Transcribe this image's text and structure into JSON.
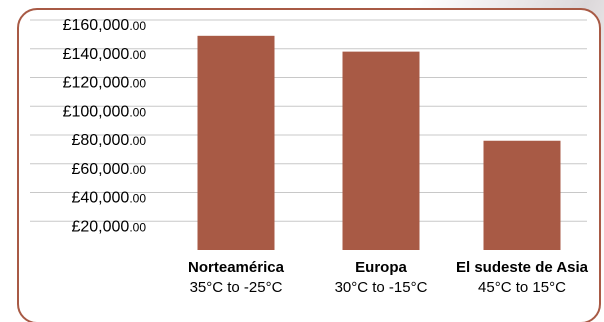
{
  "chart_data": {
    "type": "bar",
    "title": "",
    "xlabel": "",
    "ylabel": "",
    "ylim": [
      0,
      160000
    ],
    "grid": true,
    "bar_color": "#a85a45",
    "grid_color": "#c8c8c8",
    "frame_color": "#a85a45",
    "y_ticks": [
      {
        "value": 160000,
        "main": "£160,000",
        "decimals": ".00"
      },
      {
        "value": 140000,
        "main": "£140,000",
        "decimals": ".00"
      },
      {
        "value": 120000,
        "main": "£120,000",
        "decimals": ".00"
      },
      {
        "value": 100000,
        "main": "£100,000",
        "decimals": ".00"
      },
      {
        "value": 80000,
        "main": "£80,000",
        "decimals": ".00"
      },
      {
        "value": 60000,
        "main": "£60,000",
        "decimals": ".00"
      },
      {
        "value": 40000,
        "main": "£40,000",
        "decimals": ".00"
      },
      {
        "value": 20000,
        "main": "£20,000",
        "decimals": ".00"
      }
    ],
    "categories": [
      {
        "name": "Norteamérica",
        "subtitle": "35°C to -25°C"
      },
      {
        "name": "Europa",
        "subtitle": "30°C to -15°C"
      },
      {
        "name": "El sudeste de Asia",
        "subtitle": "45°C to 15°C"
      }
    ],
    "values": [
      149000,
      138000,
      76000
    ]
  }
}
